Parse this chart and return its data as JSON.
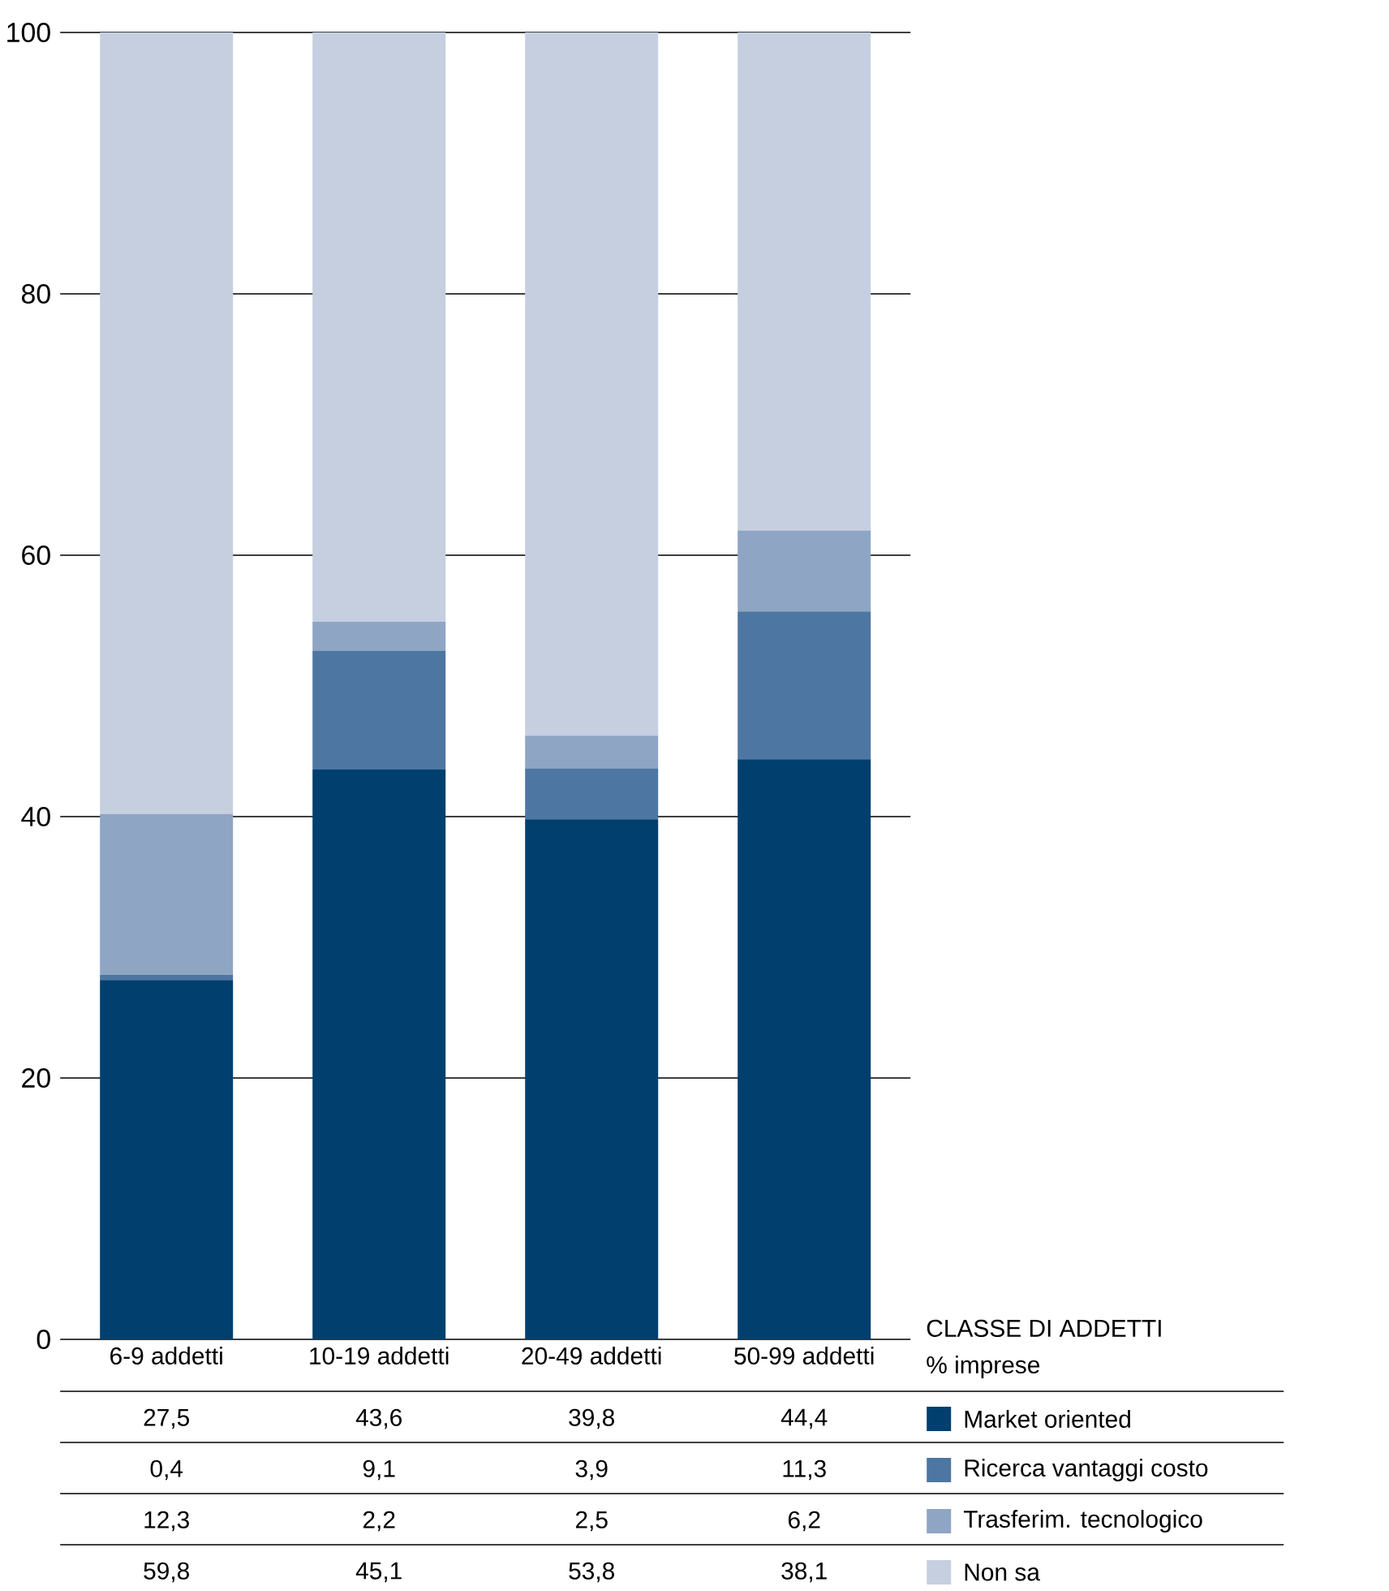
{
  "chart_data": {
    "type": "bar",
    "stacked": true,
    "xlabel": "CLASSE DI ADDETTI",
    "ylabel": "% imprese",
    "categories": [
      "6-9 addetti",
      "10-19 addetti",
      "20-49 addetti",
      "50-99 addetti"
    ],
    "series": [
      {
        "name": "Market oriented",
        "color": "#003f6e",
        "values": [
          27.5,
          43.6,
          39.8,
          44.4
        ],
        "value_labels": [
          "27,5",
          "43,6",
          "39,8",
          "44,4"
        ]
      },
      {
        "name": "Ricerca vantaggi costo",
        "color": "#4d77a2",
        "values": [
          0.4,
          9.1,
          3.9,
          11.3
        ],
        "value_labels": [
          "0,4",
          "9,1",
          "3,9",
          "11,3"
        ]
      },
      {
        "name": "Trasferim. tecnologico",
        "color": "#8ea5c4",
        "values": [
          12.3,
          2.2,
          2.5,
          6.2
        ],
        "value_labels": [
          "12,3",
          "2,2",
          "2,5",
          "6,2"
        ]
      },
      {
        "name": "Non sa",
        "color": "#c5cfe0",
        "values": [
          59.8,
          45.1,
          53.8,
          38.1
        ],
        "value_labels": [
          "59,8",
          "45,1",
          "53,8",
          "38,1"
        ]
      }
    ],
    "ylim": [
      0,
      100
    ],
    "yticks": [
      0,
      20,
      40,
      60,
      80,
      100
    ],
    "grid": "y",
    "legend": "right"
  }
}
